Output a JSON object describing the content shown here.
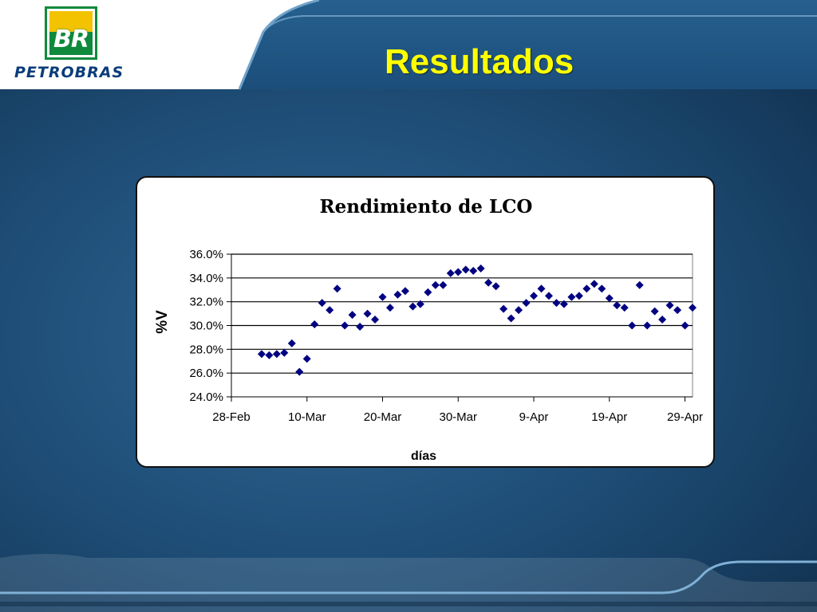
{
  "slide": {
    "title": "Resultados",
    "logo": {
      "mark_text": "BR",
      "wordmark": "PETROBRAS"
    }
  },
  "colors": {
    "title": "#ffff00",
    "background": "#1f4f79",
    "marker": "#000080",
    "logo_green": "#0f8a3c",
    "logo_yellow": "#f3c200"
  },
  "chart_data": {
    "type": "scatter",
    "title": "Rendimiento de LCO",
    "xlabel": "días",
    "ylabel": "%V",
    "marker": "diamond",
    "grid": true,
    "legend": "none",
    "ylim": [
      24.0,
      36.0
    ],
    "yticks": [
      24.0,
      26.0,
      28.0,
      30.0,
      32.0,
      34.0,
      36.0
    ],
    "ytick_labels": [
      "24.0%",
      "26.0%",
      "28.0%",
      "30.0%",
      "32.0%",
      "34.0%",
      "36.0%"
    ],
    "xlim": [
      "2003-02-28",
      "2003-04-30"
    ],
    "xticks": [
      "2003-02-28",
      "2003-03-10",
      "2003-03-20",
      "2003-03-30",
      "2003-04-09",
      "2003-04-19",
      "2003-04-29"
    ],
    "xtick_labels": [
      "28-Feb",
      "10-Mar",
      "20-Mar",
      "30-Mar",
      "9-Apr",
      "19-Apr",
      "29-Apr"
    ],
    "series": [
      {
        "points": [
          [
            "2003-03-04",
            27.6
          ],
          [
            "2003-03-05",
            27.5
          ],
          [
            "2003-03-06",
            27.6
          ],
          [
            "2003-03-07",
            27.7
          ],
          [
            "2003-03-08",
            28.5
          ],
          [
            "2003-03-09",
            26.1
          ],
          [
            "2003-03-10",
            27.2
          ],
          [
            "2003-03-11",
            30.1
          ],
          [
            "2003-03-12",
            31.9
          ],
          [
            "2003-03-13",
            31.3
          ],
          [
            "2003-03-14",
            33.1
          ],
          [
            "2003-03-15",
            30.0
          ],
          [
            "2003-03-16",
            30.9
          ],
          [
            "2003-03-17",
            29.9
          ],
          [
            "2003-03-18",
            31.0
          ],
          [
            "2003-03-19",
            30.5
          ],
          [
            "2003-03-20",
            32.4
          ],
          [
            "2003-03-21",
            31.5
          ],
          [
            "2003-03-22",
            32.6
          ],
          [
            "2003-03-23",
            32.9
          ],
          [
            "2003-03-24",
            31.6
          ],
          [
            "2003-03-25",
            31.8
          ],
          [
            "2003-03-26",
            32.8
          ],
          [
            "2003-03-27",
            33.4
          ],
          [
            "2003-03-28",
            33.4
          ],
          [
            "2003-03-29",
            34.4
          ],
          [
            "2003-03-30",
            34.5
          ],
          [
            "2003-03-31",
            34.7
          ],
          [
            "2003-04-01",
            34.6
          ],
          [
            "2003-04-02",
            34.8
          ],
          [
            "2003-04-03",
            33.6
          ],
          [
            "2003-04-04",
            33.3
          ],
          [
            "2003-04-05",
            31.4
          ],
          [
            "2003-04-06",
            30.6
          ],
          [
            "2003-04-07",
            31.3
          ],
          [
            "2003-04-08",
            31.9
          ],
          [
            "2003-04-09",
            32.5
          ],
          [
            "2003-04-10",
            33.1
          ],
          [
            "2003-04-11",
            32.5
          ],
          [
            "2003-04-12",
            31.9
          ],
          [
            "2003-04-13",
            31.8
          ],
          [
            "2003-04-14",
            32.4
          ],
          [
            "2003-04-15",
            32.5
          ],
          [
            "2003-04-16",
            33.1
          ],
          [
            "2003-04-17",
            33.5
          ],
          [
            "2003-04-18",
            33.1
          ],
          [
            "2003-04-19",
            32.3
          ],
          [
            "2003-04-20",
            31.7
          ],
          [
            "2003-04-21",
            31.5
          ],
          [
            "2003-04-22",
            30.0
          ],
          [
            "2003-04-23",
            33.4
          ],
          [
            "2003-04-24",
            30.0
          ],
          [
            "2003-04-25",
            31.2
          ],
          [
            "2003-04-26",
            30.5
          ],
          [
            "2003-04-27",
            31.7
          ],
          [
            "2003-04-28",
            31.3
          ],
          [
            "2003-04-29",
            30.0
          ],
          [
            "2003-04-30",
            31.5
          ]
        ]
      }
    ]
  }
}
